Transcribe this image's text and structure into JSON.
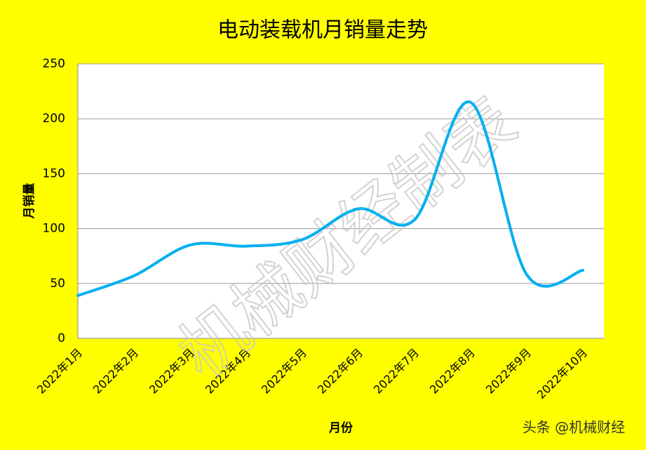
{
  "chart_data": {
    "type": "line",
    "title": "电动装载机月销量走势",
    "categories": [
      "2022年1月",
      "2022年2月",
      "2022年3月",
      "2022年4月",
      "2022年5月",
      "2022年6月",
      "2022年7月",
      "2022年8月",
      "2022年9月",
      "2022年10月"
    ],
    "series": [
      {
        "name": "月销量",
        "color": "#00b0f0",
        "values": [
          39,
          57,
          85,
          84,
          90,
          118,
          108,
          215,
          58,
          62
        ]
      }
    ],
    "ylabel": "月销量",
    "xlabel": "月份",
    "ylim": [
      0,
      250
    ],
    "yticks": [
      0,
      50,
      100,
      150,
      200,
      250
    ],
    "grid": true,
    "smooth": true,
    "watermark": "机械财经制表",
    "source": "头条 @机械财经"
  }
}
